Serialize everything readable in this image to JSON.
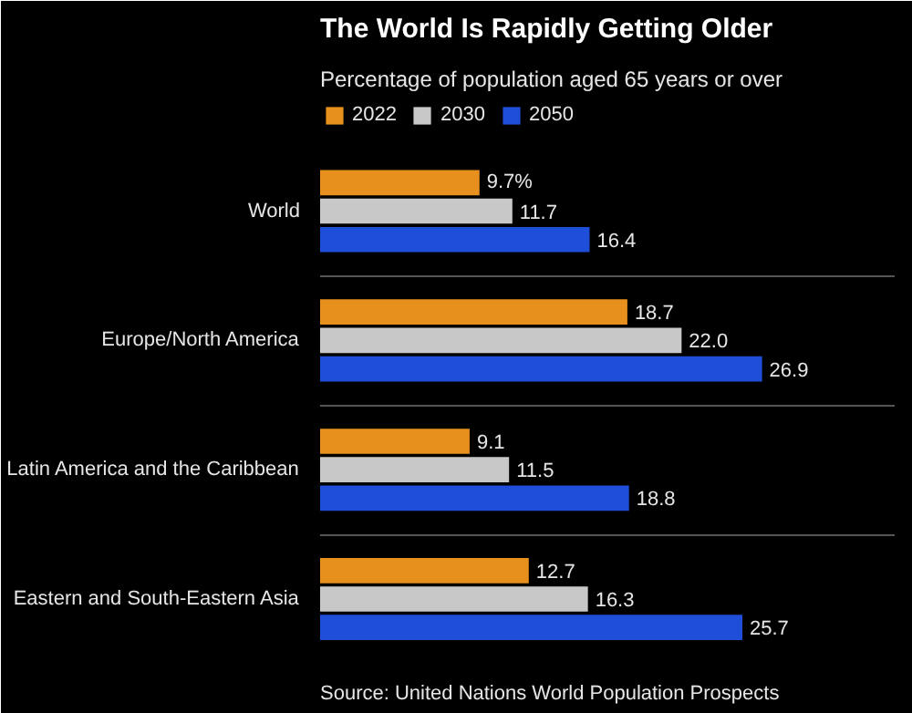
{
  "chart_data": {
    "type": "bar",
    "orientation": "horizontal",
    "title": "The World Is Rapidly Getting Older",
    "subtitle": "Percentage of population aged 65 years or over",
    "categories": [
      "World",
      "Europe/North America",
      "Latin America and the Caribbean",
      "Eastern and South-Eastern Asia"
    ],
    "series": [
      {
        "name": "2022",
        "color": "#e8901e",
        "values": [
          9.7,
          18.7,
          9.1,
          12.7
        ],
        "value_labels": [
          "9.7%",
          "18.7",
          "9.1",
          "12.7"
        ]
      },
      {
        "name": "2030",
        "color": "#c8c8c8",
        "values": [
          11.7,
          22.0,
          11.5,
          16.3
        ],
        "value_labels": [
          "11.7",
          "22.0",
          "11.5",
          "16.3"
        ]
      },
      {
        "name": "2050",
        "color": "#1f4fd8",
        "values": [
          16.4,
          26.9,
          18.8,
          25.7
        ],
        "value_labels": [
          "16.4",
          "26.9",
          "18.8",
          "25.7"
        ]
      }
    ],
    "legend": "top left",
    "grid": "y",
    "annotations": [
      "Source: United Nations World Population Prospects"
    ]
  }
}
